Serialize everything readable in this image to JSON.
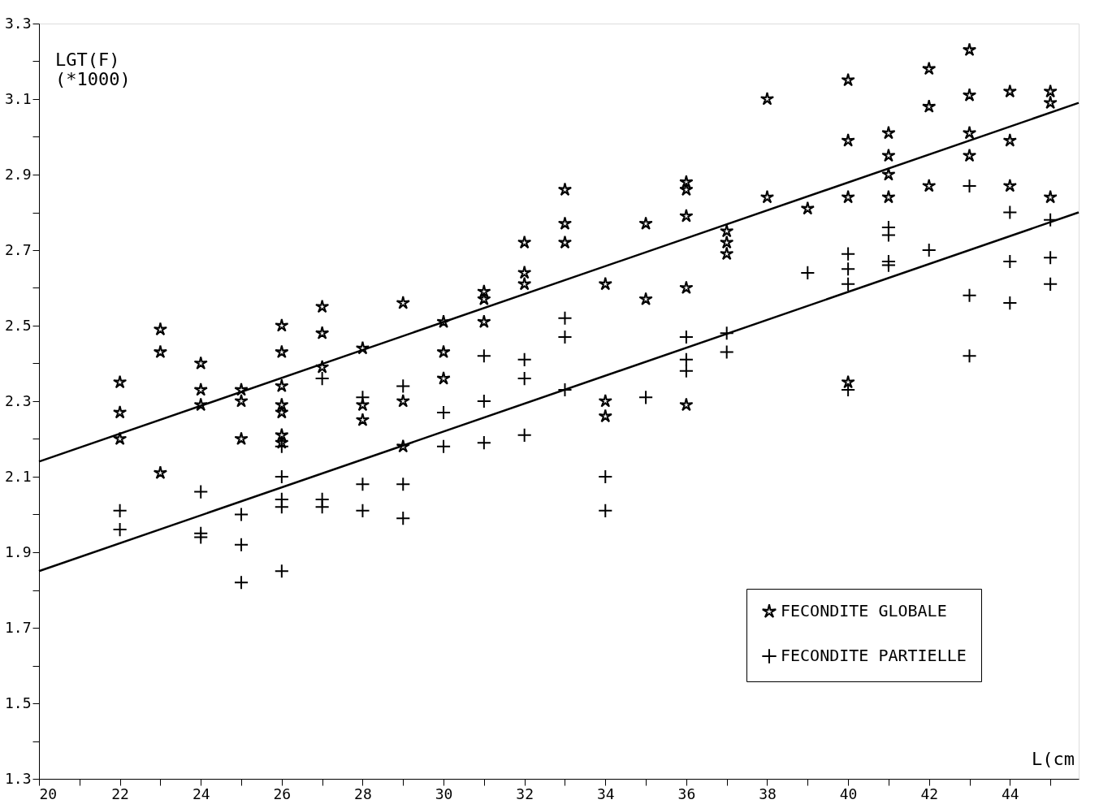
{
  "chart_data": {
    "type": "scatter",
    "ylabel": "LGT(F)\n(*1000)",
    "xlabel": "L(cm",
    "xlim": [
      20,
      45.7
    ],
    "ylim": [
      1.3,
      3.3
    ],
    "xticks": [
      20,
      {
        "value": 21,
        "label": null
      },
      22,
      {
        "value": 23,
        "label": null
      },
      24,
      {
        "value": 25,
        "label": null
      },
      26,
      {
        "value": 27,
        "label": null
      },
      28,
      {
        "value": 29,
        "label": null
      },
      30,
      {
        "value": 31,
        "label": null
      },
      32,
      {
        "value": 33,
        "label": null
      },
      34,
      {
        "value": 35,
        "label": null
      },
      36,
      {
        "value": 37,
        "label": null
      },
      38,
      {
        "value": 39,
        "label": null
      },
      40,
      {
        "value": 41,
        "label": null
      },
      42,
      {
        "value": 43,
        "label": null
      },
      44,
      {
        "value": 45,
        "label": null
      }
    ],
    "yticks": [
      1.3,
      {
        "value": 1.4,
        "label": null
      },
      1.5,
      {
        "value": 1.6,
        "label": null
      },
      1.7,
      {
        "value": 1.8,
        "label": null
      },
      1.9,
      {
        "value": 2.0,
        "label": null
      },
      2.1,
      {
        "value": 2.2,
        "label": null
      },
      2.3,
      {
        "value": 2.4,
        "label": null
      },
      2.5,
      {
        "value": 2.6,
        "label": null
      },
      2.7,
      {
        "value": 2.8,
        "label": null
      },
      2.9,
      {
        "value": 3.0,
        "label": null
      },
      3.1,
      {
        "value": 3.2,
        "label": null
      },
      3.3
    ],
    "grid": false,
    "legend": "bottom right",
    "series": [
      {
        "name": "FECONDITE GLOBALE",
        "type": "scatter",
        "marker": "star",
        "color": "#000000",
        "x": [
          22,
          22,
          22,
          23,
          23,
          23,
          24,
          24,
          24,
          25,
          25,
          25,
          26,
          26,
          26,
          26,
          26,
          26,
          26,
          27,
          27,
          27,
          28,
          28,
          28,
          29,
          29,
          29,
          30,
          30,
          30,
          31,
          31,
          31,
          32,
          32,
          32,
          33,
          33,
          33,
          34,
          34,
          34,
          35,
          35,
          36,
          36,
          36,
          36,
          36,
          37,
          37,
          37,
          38,
          38,
          39,
          40,
          40,
          40,
          40,
          41,
          41,
          41,
          41,
          42,
          42,
          42,
          43,
          43,
          43,
          43,
          44,
          44,
          44,
          45,
          45,
          45
        ],
        "values": [
          2.35,
          2.27,
          2.2,
          2.49,
          2.43,
          2.11,
          2.4,
          2.33,
          2.29,
          2.33,
          2.3,
          2.2,
          2.5,
          2.43,
          2.34,
          2.29,
          2.27,
          2.21,
          2.19,
          2.55,
          2.48,
          2.39,
          2.44,
          2.29,
          2.25,
          2.56,
          2.3,
          2.18,
          2.51,
          2.43,
          2.36,
          2.59,
          2.57,
          2.51,
          2.72,
          2.64,
          2.61,
          2.86,
          2.77,
          2.72,
          2.61,
          2.3,
          2.26,
          2.77,
          2.57,
          2.88,
          2.86,
          2.79,
          2.6,
          2.29,
          2.75,
          2.72,
          2.69,
          3.1,
          2.84,
          2.81,
          3.15,
          2.99,
          2.84,
          2.35,
          3.01,
          2.95,
          2.9,
          2.84,
          3.18,
          3.08,
          2.87,
          3.23,
          3.11,
          3.01,
          2.95,
          3.12,
          2.99,
          2.87,
          3.12,
          3.09,
          2.84
        ]
      },
      {
        "name": "FECONDITE PARTIELLE",
        "type": "scatter",
        "marker": "cross",
        "color": "#000000",
        "x": [
          22,
          22,
          24,
          24,
          24,
          25,
          25,
          25,
          26,
          26,
          26,
          26,
          26,
          27,
          27,
          27,
          28,
          28,
          28,
          29,
          29,
          29,
          30,
          30,
          31,
          31,
          31,
          32,
          32,
          32,
          33,
          33,
          33,
          34,
          34,
          35,
          36,
          36,
          36,
          37,
          37,
          39,
          40,
          40,
          40,
          40,
          41,
          41,
          41,
          41,
          42,
          43,
          43,
          43,
          44,
          44,
          44,
          45,
          45,
          45
        ],
        "values": [
          2.01,
          1.96,
          2.06,
          1.95,
          1.94,
          2.0,
          1.92,
          1.82,
          2.18,
          2.1,
          2.04,
          2.02,
          1.85,
          2.36,
          2.04,
          2.02,
          2.31,
          2.08,
          2.01,
          2.34,
          2.08,
          1.99,
          2.27,
          2.18,
          2.42,
          2.3,
          2.19,
          2.41,
          2.36,
          2.21,
          2.52,
          2.47,
          2.33,
          2.1,
          2.01,
          2.31,
          2.47,
          2.41,
          2.38,
          2.48,
          2.43,
          2.64,
          2.69,
          2.65,
          2.61,
          2.33,
          2.76,
          2.74,
          2.67,
          2.66,
          2.7,
          2.87,
          2.58,
          2.42,
          2.8,
          2.67,
          2.56,
          2.78,
          2.68,
          2.61
        ]
      },
      {
        "type": "line",
        "marker": "none",
        "line_style": "solid",
        "color": "#000000",
        "x": [
          20,
          45.7
        ],
        "values": [
          2.14,
          3.09
        ]
      },
      {
        "type": "line",
        "marker": "none",
        "line_style": "solid",
        "color": "#000000",
        "x": [
          20,
          45.7
        ],
        "values": [
          1.85,
          2.8
        ]
      }
    ]
  }
}
